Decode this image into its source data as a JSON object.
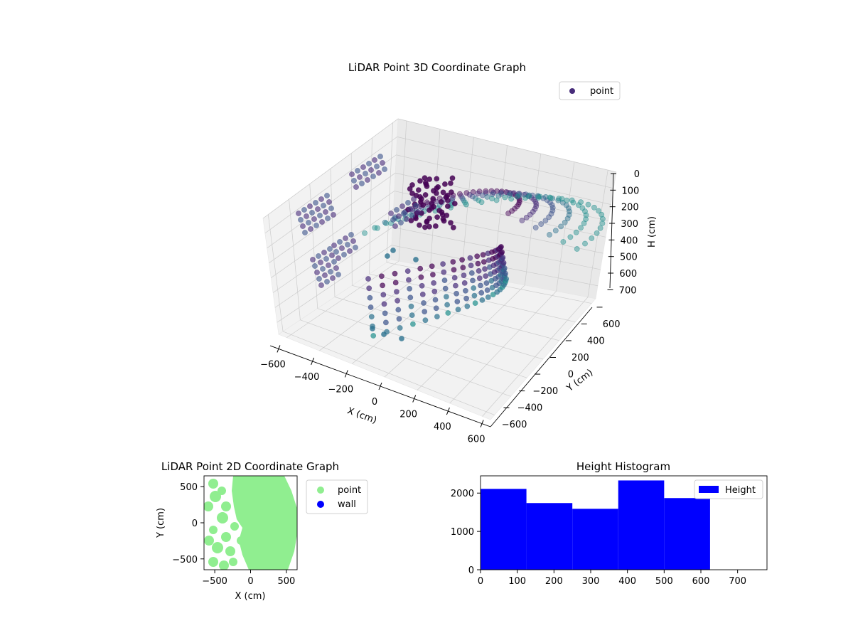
{
  "chart_data": [
    {
      "type": "scatter",
      "projection": "3d",
      "title": "LiDAR Point 3D Coordinate Graph",
      "xlabel": "X (cm)",
      "ylabel": "Y (cm)",
      "zlabel": "H (cm)",
      "x_ticks": [
        "−600",
        "−400",
        "−200",
        "0",
        "200",
        "400",
        "600"
      ],
      "y_ticks": [
        "−600",
        "−400",
        "−200",
        "0",
        "200",
        "400",
        "600"
      ],
      "z_ticks": [
        "0",
        "100",
        "200",
        "300",
        "400",
        "500",
        "600",
        "700"
      ],
      "xlim": [
        -650,
        650
      ],
      "ylim": [
        -650,
        650
      ],
      "zlim": [
        0,
        780
      ],
      "z_inverted": true,
      "legend": [
        "point"
      ],
      "legend_loc": "top-right",
      "colormap": "viridis",
      "grid": true,
      "colors": {
        "legend_marker": "#472c7a"
      }
    },
    {
      "type": "scatter",
      "title": "LiDAR Point 2D Coordinate Graph",
      "xlabel": "X (cm)",
      "ylabel": "Y (cm)",
      "x_ticks": [
        "−500",
        "0",
        "500"
      ],
      "y_ticks": [
        "500",
        "0",
        "−500"
      ],
      "xlim": [
        -650,
        650
      ],
      "ylim": [
        -650,
        650
      ],
      "series": [
        {
          "name": "point",
          "color": "#90ee90"
        },
        {
          "name": "wall",
          "color": "#0000ff"
        }
      ],
      "legend_loc": "outside-right"
    },
    {
      "type": "bar",
      "title": "Height Histogram",
      "bin_edges": [
        0,
        125,
        250,
        375,
        500,
        625
      ],
      "values": [
        2110,
        1740,
        1590,
        2330,
        1870
      ],
      "xlim": [
        0,
        780
      ],
      "ylim": [
        0,
        2450
      ],
      "x_ticks": [
        "0",
        "100",
        "200",
        "300",
        "400",
        "500",
        "600",
        "700"
      ],
      "y_ticks": [
        "0",
        "1000",
        "2000"
      ],
      "legend": [
        "Height"
      ],
      "legend_loc": "top-right",
      "color": "#0000ff"
    }
  ]
}
